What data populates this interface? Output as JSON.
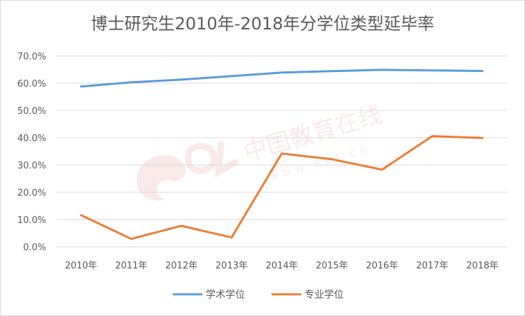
{
  "chart_data": {
    "type": "line",
    "title": "博士研究生2010年-2018年分学位类型延毕率",
    "categories": [
      "2010年",
      "2011年",
      "2012年",
      "2013年",
      "2014年",
      "2015年",
      "2016年",
      "2017年",
      "2018年"
    ],
    "series": [
      {
        "name": "学术学位",
        "color": "#5b9bd5",
        "values": [
          58.8,
          60.3,
          61.3,
          62.6,
          63.9,
          64.4,
          64.9,
          64.7,
          64.5
        ]
      },
      {
        "name": "专业学位",
        "color": "#ed7d31",
        "values": [
          11.6,
          2.9,
          7.7,
          3.4,
          34.2,
          32.1,
          28.3,
          40.6,
          39.9
        ]
      }
    ],
    "ylim": [
      0,
      70
    ],
    "ytick_labels": [
      "0.0%",
      "10.0%",
      "20.0%",
      "30.0%",
      "40.0%",
      "50.0%",
      "60.0%",
      "70.0%"
    ],
    "grid": true,
    "legend_position": "bottom",
    "watermark": {
      "text": "中国教育在线",
      "subtext": "www.eol.cn",
      "logo": "eol"
    }
  }
}
